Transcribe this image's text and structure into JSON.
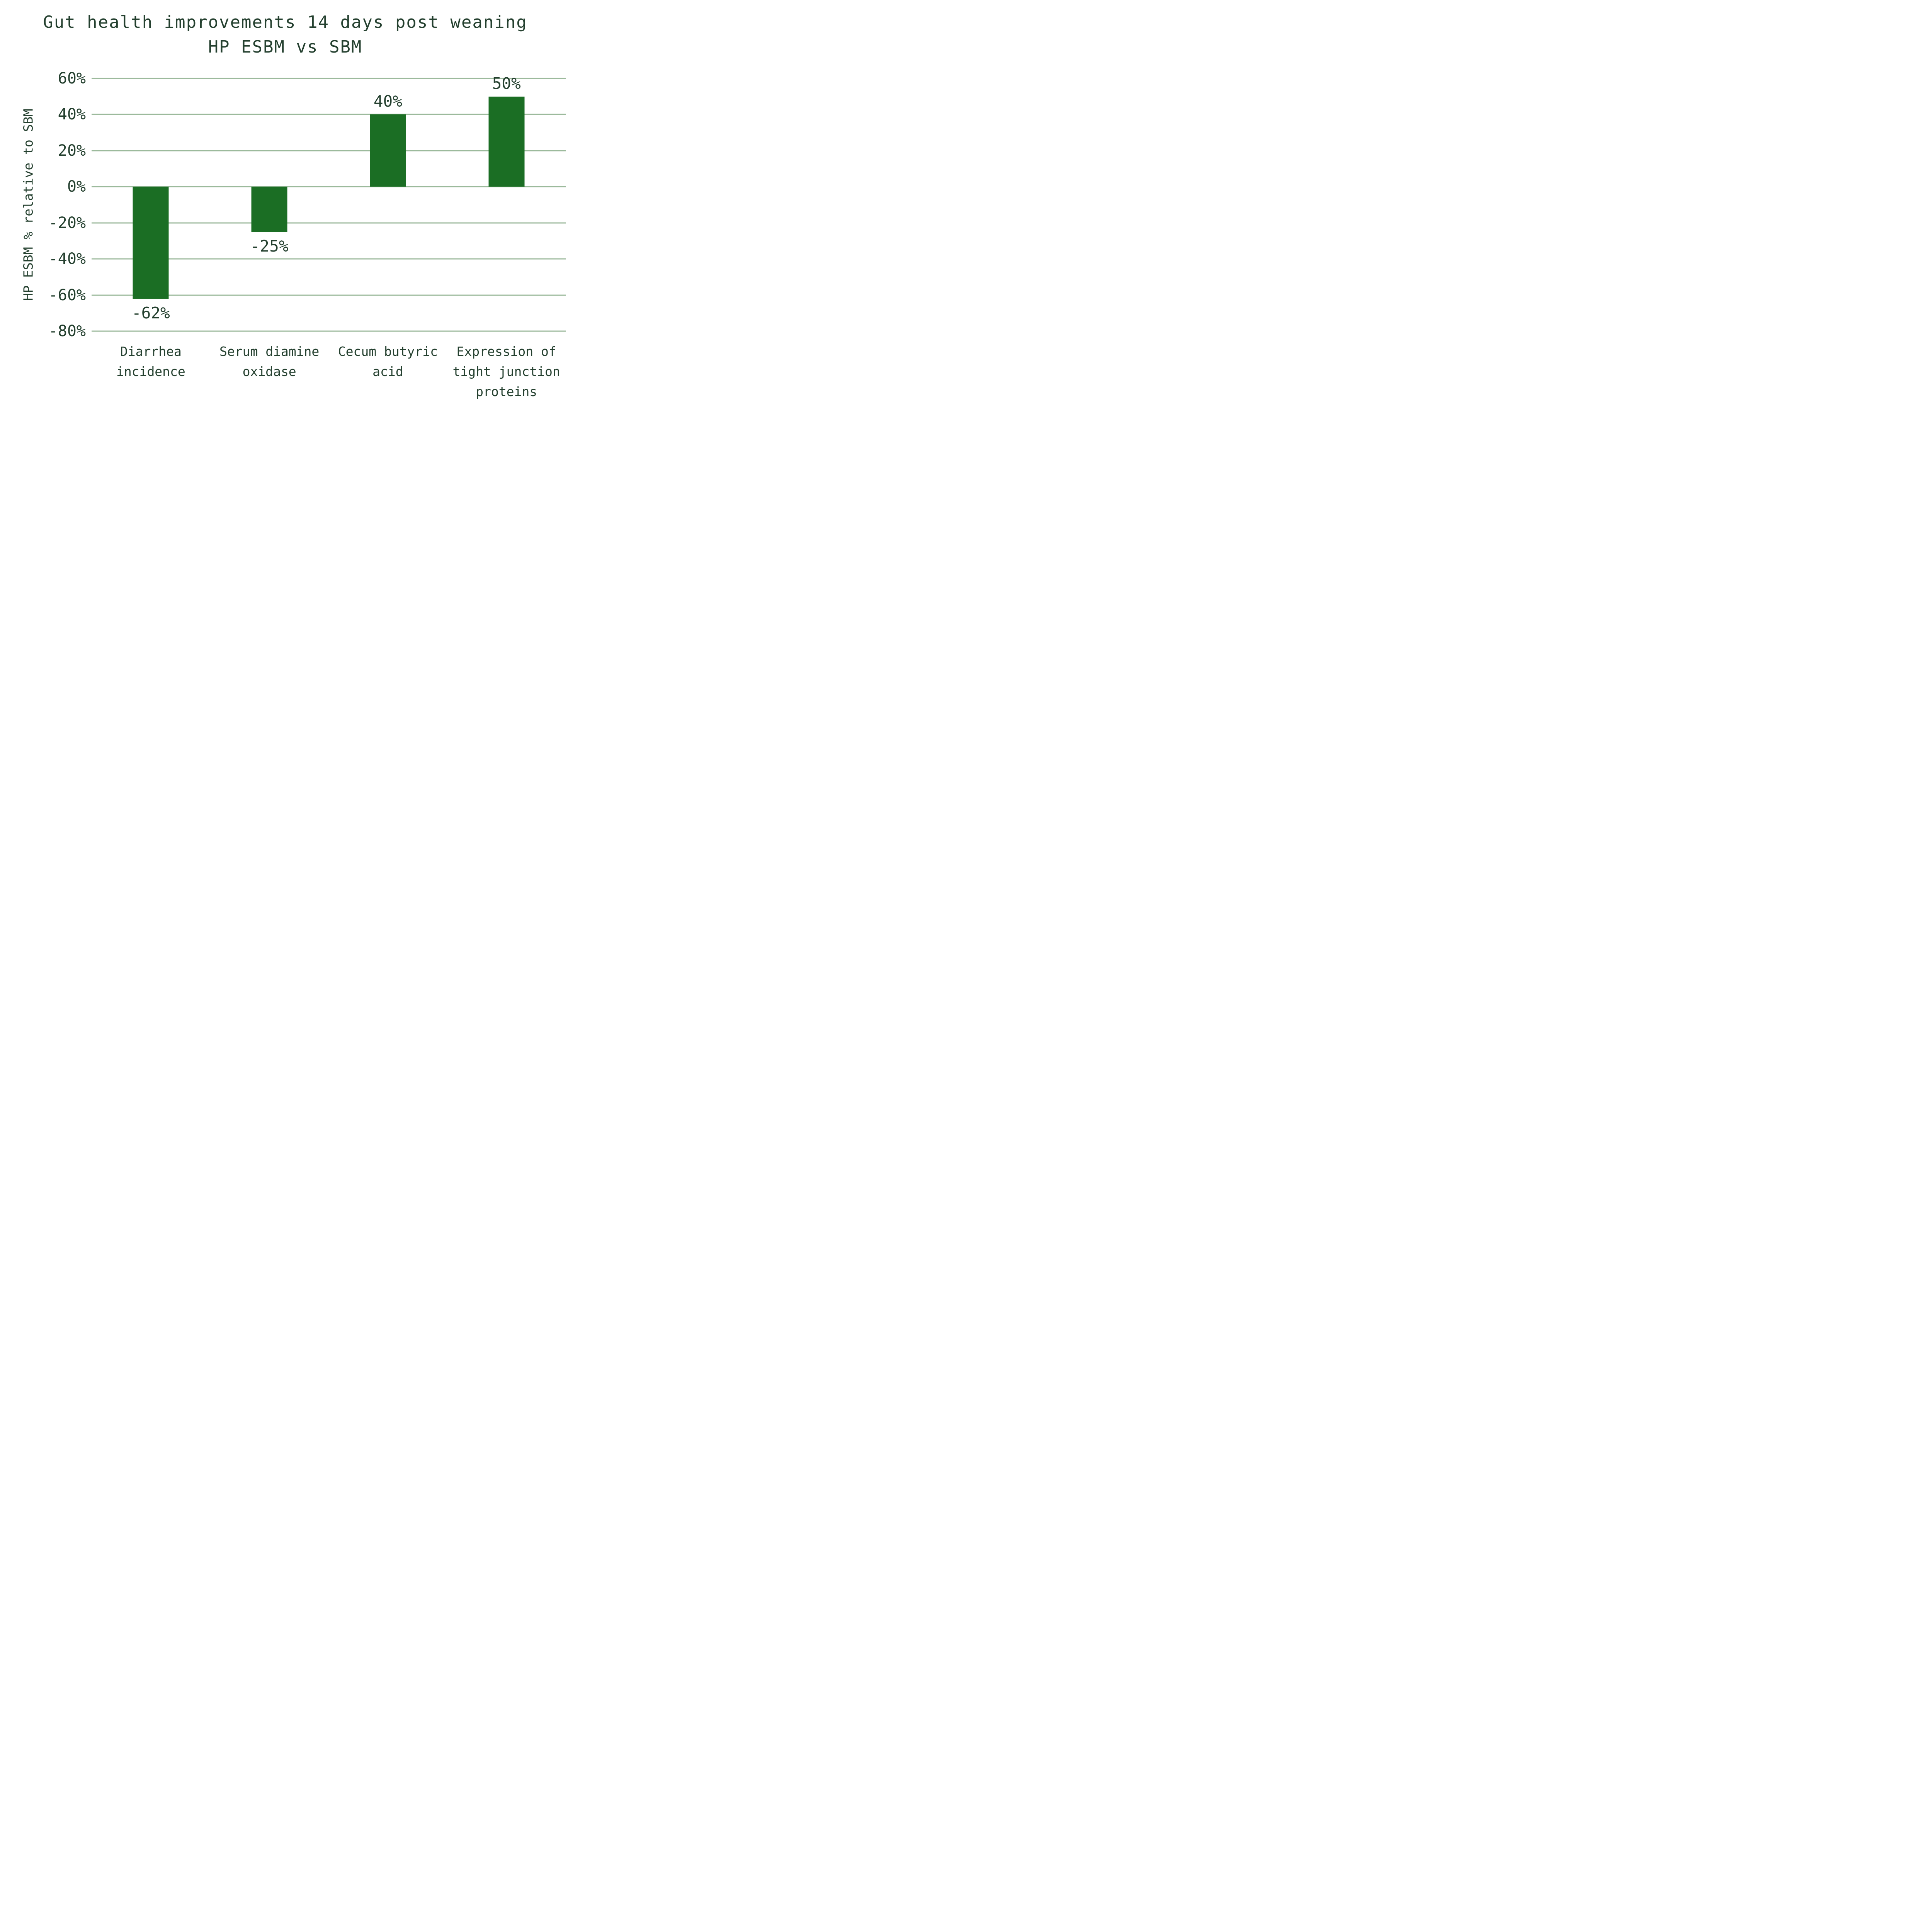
{
  "title": {
    "line1": "Gut health improvements 14 days post weaning",
    "line2": "HP ESBM vs SBM"
  },
  "chart_data": {
    "type": "bar",
    "title": "Gut health improvements 14 days post weaning HP ESBM vs SBM",
    "categories": [
      "Diarrhea incidence",
      "Serum diamine oxidase",
      "Cecum butyric acid",
      "Expression of tight junction proteins"
    ],
    "category_lines": [
      [
        "Diarrhea",
        "incidence"
      ],
      [
        "Serum diamine",
        "oxidase"
      ],
      [
        "Cecum butyric",
        "acid"
      ],
      [
        "Expression of",
        "tight junction",
        "proteins"
      ]
    ],
    "values": [
      -62,
      -25,
      40,
      50
    ],
    "bar_labels": [
      "-62%",
      "-25%",
      "40%",
      "50%"
    ],
    "xlabel": "",
    "ylabel": "HP ESBM % relative to SBM",
    "ylim": [
      -80,
      60
    ],
    "ytick_values": [
      60,
      40,
      20,
      0,
      -20,
      -40,
      -60,
      -80
    ],
    "ytick_labels": [
      "60%",
      "40%",
      "20%",
      "0%",
      "-20%",
      "-40%",
      "-60%",
      "-80%"
    ],
    "grid": "horizontal",
    "legend": "none",
    "colors": {
      "bar": "#1b6e24",
      "gridline": "#9cba9c",
      "text": "#24402f",
      "background": "#ffffff"
    }
  }
}
